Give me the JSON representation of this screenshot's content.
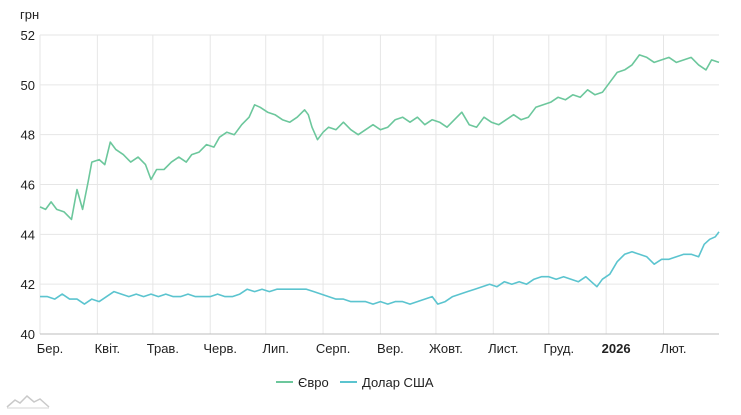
{
  "chart_data": {
    "type": "line",
    "unit_label": "грн",
    "y_ticks": [
      40,
      42,
      44,
      46,
      48,
      50,
      52
    ],
    "ylim": [
      40,
      52
    ],
    "x_range": [
      "2025-03-01",
      "2026-03-03"
    ],
    "x_ticks": [
      {
        "date": "2025-03-01",
        "label": "Бер.",
        "bold": false
      },
      {
        "date": "2025-04-01",
        "label": "Квіт.",
        "bold": false
      },
      {
        "date": "2025-05-01",
        "label": "Трав.",
        "bold": false
      },
      {
        "date": "2025-06-01",
        "label": "Черв.",
        "bold": false
      },
      {
        "date": "2025-07-01",
        "label": "Лип.",
        "bold": false
      },
      {
        "date": "2025-08-01",
        "label": "Серп.",
        "bold": false
      },
      {
        "date": "2025-09-01",
        "label": "Вер.",
        "bold": false
      },
      {
        "date": "2025-10-01",
        "label": "Жовт.",
        "bold": false
      },
      {
        "date": "2025-11-01",
        "label": "Лист.",
        "bold": false
      },
      {
        "date": "2025-12-01",
        "label": "Груд.",
        "bold": false
      },
      {
        "date": "2026-01-01",
        "label": "2026",
        "bold": true
      },
      {
        "date": "2026-02-01",
        "label": "Лют.",
        "bold": false
      }
    ],
    "grid": true,
    "legend_position": "bottom-center",
    "series": [
      {
        "name": "Євро",
        "color": "#6cc79c",
        "points": [
          [
            "2025-03-01",
            45.1
          ],
          [
            "2025-03-04",
            45.0
          ],
          [
            "2025-03-07",
            45.3
          ],
          [
            "2025-03-10",
            45.0
          ],
          [
            "2025-03-14",
            44.9
          ],
          [
            "2025-03-18",
            44.6
          ],
          [
            "2025-03-21",
            45.8
          ],
          [
            "2025-03-24",
            45.0
          ],
          [
            "2025-03-27",
            46.1
          ],
          [
            "2025-03-29",
            46.9
          ],
          [
            "2025-04-02",
            47.0
          ],
          [
            "2025-04-05",
            46.8
          ],
          [
            "2025-04-08",
            47.7
          ],
          [
            "2025-04-11",
            47.4
          ],
          [
            "2025-04-15",
            47.2
          ],
          [
            "2025-04-19",
            46.9
          ],
          [
            "2025-04-23",
            47.1
          ],
          [
            "2025-04-27",
            46.8
          ],
          [
            "2025-04-30",
            46.2
          ],
          [
            "2025-05-03",
            46.6
          ],
          [
            "2025-05-07",
            46.6
          ],
          [
            "2025-05-11",
            46.9
          ],
          [
            "2025-05-15",
            47.1
          ],
          [
            "2025-05-19",
            46.9
          ],
          [
            "2025-05-22",
            47.2
          ],
          [
            "2025-05-26",
            47.3
          ],
          [
            "2025-05-30",
            47.6
          ],
          [
            "2025-06-03",
            47.5
          ],
          [
            "2025-06-06",
            47.9
          ],
          [
            "2025-06-10",
            48.1
          ],
          [
            "2025-06-14",
            48.0
          ],
          [
            "2025-06-18",
            48.4
          ],
          [
            "2025-06-22",
            48.7
          ],
          [
            "2025-06-25",
            49.2
          ],
          [
            "2025-06-28",
            49.1
          ],
          [
            "2025-07-02",
            48.9
          ],
          [
            "2025-07-06",
            48.8
          ],
          [
            "2025-07-10",
            48.6
          ],
          [
            "2025-07-14",
            48.5
          ],
          [
            "2025-07-18",
            48.7
          ],
          [
            "2025-07-22",
            49.0
          ],
          [
            "2025-07-24",
            48.8
          ],
          [
            "2025-07-26",
            48.3
          ],
          [
            "2025-07-29",
            47.8
          ],
          [
            "2025-08-01",
            48.1
          ],
          [
            "2025-08-04",
            48.3
          ],
          [
            "2025-08-08",
            48.2
          ],
          [
            "2025-08-12",
            48.5
          ],
          [
            "2025-08-16",
            48.2
          ],
          [
            "2025-08-20",
            48.0
          ],
          [
            "2025-08-24",
            48.2
          ],
          [
            "2025-08-28",
            48.4
          ],
          [
            "2025-09-01",
            48.2
          ],
          [
            "2025-09-05",
            48.3
          ],
          [
            "2025-09-09",
            48.6
          ],
          [
            "2025-09-13",
            48.7
          ],
          [
            "2025-09-17",
            48.5
          ],
          [
            "2025-09-21",
            48.7
          ],
          [
            "2025-09-25",
            48.4
          ],
          [
            "2025-09-29",
            48.6
          ],
          [
            "2025-10-03",
            48.5
          ],
          [
            "2025-10-07",
            48.3
          ],
          [
            "2025-10-11",
            48.6
          ],
          [
            "2025-10-15",
            48.9
          ],
          [
            "2025-10-19",
            48.4
          ],
          [
            "2025-10-23",
            48.3
          ],
          [
            "2025-10-27",
            48.7
          ],
          [
            "2025-10-31",
            48.5
          ],
          [
            "2025-11-04",
            48.4
          ],
          [
            "2025-11-08",
            48.6
          ],
          [
            "2025-11-12",
            48.8
          ],
          [
            "2025-11-16",
            48.6
          ],
          [
            "2025-11-20",
            48.7
          ],
          [
            "2025-11-24",
            49.1
          ],
          [
            "2025-11-28",
            49.2
          ],
          [
            "2025-12-02",
            49.3
          ],
          [
            "2025-12-06",
            49.5
          ],
          [
            "2025-12-10",
            49.4
          ],
          [
            "2025-12-14",
            49.6
          ],
          [
            "2025-12-18",
            49.5
          ],
          [
            "2025-12-22",
            49.8
          ],
          [
            "2025-12-26",
            49.6
          ],
          [
            "2025-12-30",
            49.7
          ],
          [
            "2026-01-03",
            50.1
          ],
          [
            "2026-01-07",
            50.5
          ],
          [
            "2026-01-11",
            50.6
          ],
          [
            "2026-01-15",
            50.8
          ],
          [
            "2026-01-19",
            51.2
          ],
          [
            "2026-01-23",
            51.1
          ],
          [
            "2026-01-27",
            50.9
          ],
          [
            "2026-01-31",
            51.0
          ],
          [
            "2026-02-04",
            51.1
          ],
          [
            "2026-02-08",
            50.9
          ],
          [
            "2026-02-12",
            51.0
          ],
          [
            "2026-02-16",
            51.1
          ],
          [
            "2026-02-20",
            50.8
          ],
          [
            "2026-02-24",
            50.6
          ],
          [
            "2026-02-27",
            51.0
          ],
          [
            "2026-03-03",
            50.9
          ]
        ]
      },
      {
        "name": "Долар США",
        "color": "#5bc4cf",
        "points": [
          [
            "2025-03-01",
            41.5
          ],
          [
            "2025-03-05",
            41.5
          ],
          [
            "2025-03-09",
            41.4
          ],
          [
            "2025-03-13",
            41.6
          ],
          [
            "2025-03-17",
            41.4
          ],
          [
            "2025-03-21",
            41.4
          ],
          [
            "2025-03-25",
            41.2
          ],
          [
            "2025-03-29",
            41.4
          ],
          [
            "2025-04-02",
            41.3
          ],
          [
            "2025-04-06",
            41.5
          ],
          [
            "2025-04-10",
            41.7
          ],
          [
            "2025-04-14",
            41.6
          ],
          [
            "2025-04-18",
            41.5
          ],
          [
            "2025-04-22",
            41.6
          ],
          [
            "2025-04-26",
            41.5
          ],
          [
            "2025-04-30",
            41.6
          ],
          [
            "2025-05-04",
            41.5
          ],
          [
            "2025-05-08",
            41.6
          ],
          [
            "2025-05-12",
            41.5
          ],
          [
            "2025-05-16",
            41.5
          ],
          [
            "2025-05-20",
            41.6
          ],
          [
            "2025-05-24",
            41.5
          ],
          [
            "2025-05-28",
            41.5
          ],
          [
            "2025-06-01",
            41.5
          ],
          [
            "2025-06-05",
            41.6
          ],
          [
            "2025-06-09",
            41.5
          ],
          [
            "2025-06-13",
            41.5
          ],
          [
            "2025-06-17",
            41.6
          ],
          [
            "2025-06-21",
            41.8
          ],
          [
            "2025-06-25",
            41.7
          ],
          [
            "2025-06-29",
            41.8
          ],
          [
            "2025-07-03",
            41.7
          ],
          [
            "2025-07-07",
            41.8
          ],
          [
            "2025-07-11",
            41.8
          ],
          [
            "2025-07-15",
            41.8
          ],
          [
            "2025-07-19",
            41.8
          ],
          [
            "2025-07-23",
            41.8
          ],
          [
            "2025-07-27",
            41.7
          ],
          [
            "2025-07-31",
            41.6
          ],
          [
            "2025-08-04",
            41.5
          ],
          [
            "2025-08-08",
            41.4
          ],
          [
            "2025-08-12",
            41.4
          ],
          [
            "2025-08-16",
            41.3
          ],
          [
            "2025-08-20",
            41.3
          ],
          [
            "2025-08-24",
            41.3
          ],
          [
            "2025-08-28",
            41.2
          ],
          [
            "2025-09-01",
            41.3
          ],
          [
            "2025-09-05",
            41.2
          ],
          [
            "2025-09-09",
            41.3
          ],
          [
            "2025-09-13",
            41.3
          ],
          [
            "2025-09-17",
            41.2
          ],
          [
            "2025-09-21",
            41.3
          ],
          [
            "2025-09-25",
            41.4
          ],
          [
            "2025-09-29",
            41.5
          ],
          [
            "2025-10-02",
            41.2
          ],
          [
            "2025-10-06",
            41.3
          ],
          [
            "2025-10-10",
            41.5
          ],
          [
            "2025-10-14",
            41.6
          ],
          [
            "2025-10-18",
            41.7
          ],
          [
            "2025-10-22",
            41.8
          ],
          [
            "2025-10-26",
            41.9
          ],
          [
            "2025-10-30",
            42.0
          ],
          [
            "2025-11-03",
            41.9
          ],
          [
            "2025-11-07",
            42.1
          ],
          [
            "2025-11-11",
            42.0
          ],
          [
            "2025-11-15",
            42.1
          ],
          [
            "2025-11-19",
            42.0
          ],
          [
            "2025-11-23",
            42.2
          ],
          [
            "2025-11-27",
            42.3
          ],
          [
            "2025-12-01",
            42.3
          ],
          [
            "2025-12-05",
            42.2
          ],
          [
            "2025-12-09",
            42.3
          ],
          [
            "2025-12-13",
            42.2
          ],
          [
            "2025-12-17",
            42.1
          ],
          [
            "2025-12-21",
            42.3
          ],
          [
            "2025-12-24",
            42.1
          ],
          [
            "2025-12-27",
            41.9
          ],
          [
            "2025-12-30",
            42.2
          ],
          [
            "2026-01-03",
            42.4
          ],
          [
            "2026-01-07",
            42.9
          ],
          [
            "2026-01-11",
            43.2
          ],
          [
            "2026-01-15",
            43.3
          ],
          [
            "2026-01-19",
            43.2
          ],
          [
            "2026-01-23",
            43.1
          ],
          [
            "2026-01-27",
            42.8
          ],
          [
            "2026-01-31",
            43.0
          ],
          [
            "2026-02-04",
            43.0
          ],
          [
            "2026-02-08",
            43.1
          ],
          [
            "2026-02-12",
            43.2
          ],
          [
            "2026-02-16",
            43.2
          ],
          [
            "2026-02-20",
            43.1
          ],
          [
            "2026-02-23",
            43.6
          ],
          [
            "2026-02-26",
            43.8
          ],
          [
            "2026-03-01",
            43.9
          ],
          [
            "2026-03-03",
            44.1
          ]
        ]
      }
    ]
  }
}
